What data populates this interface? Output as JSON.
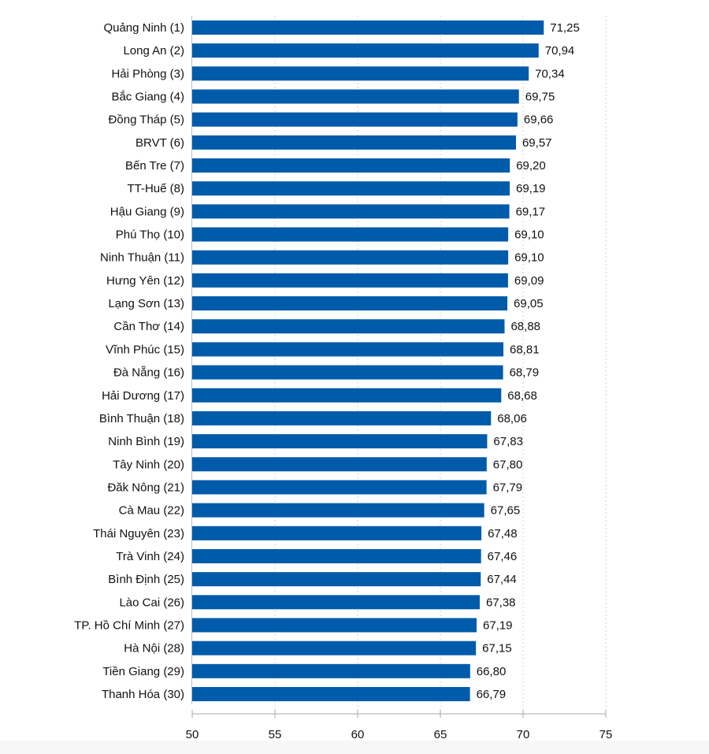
{
  "chart_data": {
    "type": "bar",
    "orientation": "horizontal",
    "categories": [
      "Quảng Ninh (1)",
      "Long An (2)",
      "Hải Phòng (3)",
      "Bắc Giang (4)",
      "Đồng Tháp (5)",
      "BRVT (6)",
      "Bến Tre (7)",
      "TT-Huế (8)",
      "Hậu Giang (9)",
      "Phú Thọ (10)",
      "Ninh Thuận (11)",
      "Hưng Yên (12)",
      "Lạng Sơn (13)",
      "Cần Thơ (14)",
      "Vĩnh Phúc (15)",
      "Đà Nẵng (16)",
      "Hải Dương (17)",
      "Bình Thuận (18)",
      "Ninh Bình (19)",
      "Tây Ninh (20)",
      "Đăk Nông (21)",
      "Cà Mau (22)",
      "Thái Nguyên (23)",
      "Trà Vinh (24)",
      "Bình Định (25)",
      "Lào Cai (26)",
      "TP. Hồ Chí Minh (27)",
      "Hà Nội (28)",
      "Tiền Giang (29)",
      "Thanh Hóa (30)"
    ],
    "values": [
      71.25,
      70.94,
      70.34,
      69.75,
      69.66,
      69.57,
      69.2,
      69.19,
      69.17,
      69.1,
      69.1,
      69.09,
      69.05,
      68.88,
      68.81,
      68.79,
      68.68,
      68.06,
      67.83,
      67.8,
      67.79,
      67.65,
      67.48,
      67.46,
      67.44,
      67.38,
      67.19,
      67.15,
      66.8,
      66.79
    ],
    "value_labels": [
      "71,25",
      "70,94",
      "70,34",
      "69,75",
      "69,66",
      "69,57",
      "69,20",
      "69,19",
      "69,17",
      "69,10",
      "69,10",
      "69,09",
      "69,05",
      "68,88",
      "68,81",
      "68,79",
      "68,68",
      "68,06",
      "67,83",
      "67,80",
      "67,79",
      "67,65",
      "67,48",
      "67,46",
      "67,44",
      "67,38",
      "67,19",
      "67,15",
      "66,80",
      "66,79"
    ],
    "xlim": [
      50,
      75
    ],
    "xticks": [
      "50",
      "55",
      "60",
      "65",
      "70",
      "75"
    ],
    "grid": "vertical dotted",
    "bar_color": "#005BAA",
    "title": "",
    "xlabel": "",
    "ylabel": ""
  }
}
